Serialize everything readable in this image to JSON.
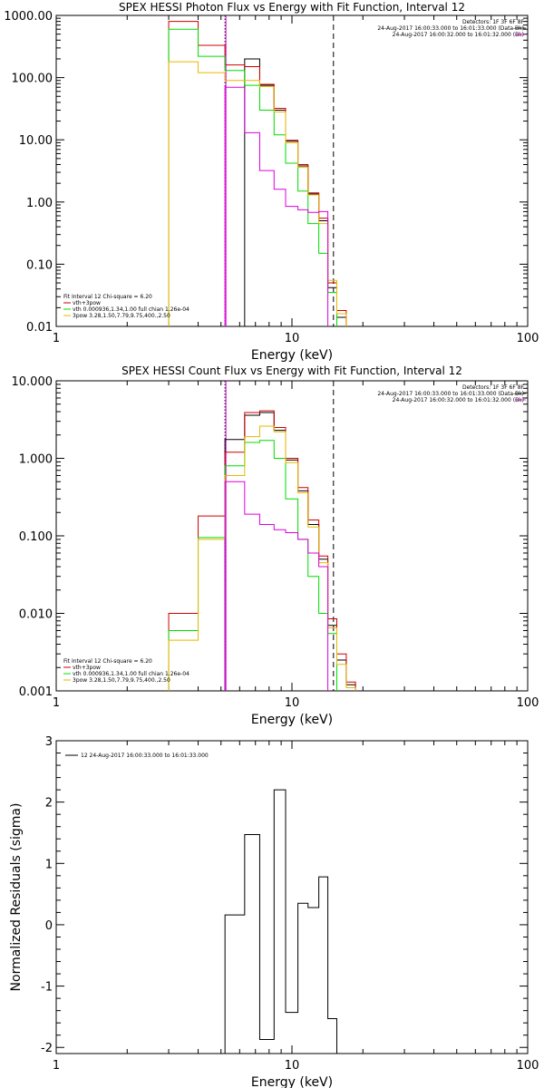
{
  "colors": {
    "black": "#000000",
    "red": "#cc0000",
    "green": "#00dd00",
    "yellow": "#e8b800",
    "magenta": "#dd00dd"
  },
  "chart_data": [
    {
      "type": "line",
      "step": true,
      "title": "SPEX HESSI Photon Flux vs Energy with Fit Function, Interval 12",
      "xlabel": "Energy (keV)",
      "ylabel": "",
      "xscale": "log",
      "yscale": "log",
      "xlim": [
        1,
        100
      ],
      "ylim": [
        0.01,
        1000
      ],
      "xticklabels": [
        "1",
        "10",
        "100"
      ],
      "yticks": [
        0.01,
        0.1,
        1,
        10,
        100,
        1000
      ],
      "yticklabels": [
        "0.01",
        "0.10",
        "1.00",
        "10.00",
        "100.00",
        "1000.00"
      ],
      "vlines": [
        {
          "x": 5.2,
          "style": "dotted",
          "color": "#000000"
        },
        {
          "x": 5.2,
          "style": "solid",
          "color": "#dd00dd"
        },
        {
          "x": 15.0,
          "style": "dashed",
          "color": "#000000"
        }
      ],
      "edges": [
        3.0,
        4.0,
        5.2,
        6.3,
        7.3,
        8.4,
        9.4,
        10.6,
        11.7,
        13.0,
        14.2,
        15.5,
        17.0
      ],
      "legend_top": {
        "position": "top-right",
        "lines": [
          {
            "text": "Detectors: 1F 3F 6F 8F",
            "color": "#000000",
            "line": false
          },
          {
            "text": "24-Aug-2017 16:00:33.000 to 16:01:33.000 (Data-Bk)",
            "color": "#000000",
            "line": true
          },
          {
            "text": "24-Aug-2017 16:00:32.000 to 16:01:32.000 (Bk)",
            "color": "#dd00dd",
            "line": true
          }
        ]
      },
      "legend_bottom": {
        "position": "bottom-left",
        "lines": [
          {
            "text": "Fit Interval 12    Chi-square = 6.20",
            "color": "#000000",
            "line": false
          },
          {
            "text": "vth+3pow",
            "color": "#cc0000",
            "line": true
          },
          {
            "text": "vth 0.000936,1.34,1.00   full chian 1.26e-04",
            "color": "#00dd00",
            "line": true
          },
          {
            "text": "3pow 3.28,1.50,7.79,9.75,400.,2.50",
            "color": "#e8b800",
            "line": true
          }
        ]
      },
      "series": [
        {
          "color": "#000000",
          "values": [
            null,
            null,
            null,
            200,
            75,
            30,
            9.5,
            3.8,
            1.35,
            0.5,
            0.042,
            0.014
          ]
        },
        {
          "color": "#cc0000",
          "values": [
            800,
            330,
            160,
            150,
            78,
            32,
            9.8,
            4.0,
            1.4,
            0.55,
            0.05,
            0.018
          ]
        },
        {
          "color": "#00dd00",
          "values": [
            600,
            220,
            130,
            75,
            30,
            12,
            4.2,
            1.5,
            0.45,
            0.15,
            0.035,
            null
          ]
        },
        {
          "color": "#e8b800",
          "values": [
            180,
            120,
            90,
            90,
            72,
            28,
            9,
            3.6,
            1.3,
            0.45,
            0.055,
            0.016
          ]
        },
        {
          "color": "#dd00dd",
          "values": [
            null,
            null,
            70,
            13,
            3.2,
            1.6,
            0.85,
            0.75,
            0.68,
            0.7,
            null,
            null
          ]
        }
      ]
    },
    {
      "type": "line",
      "step": true,
      "title": "SPEX HESSI Count Flux vs Energy with Fit Function, Interval 12",
      "xlabel": "Energy (keV)",
      "ylabel": "",
      "xscale": "log",
      "yscale": "log",
      "xlim": [
        1,
        100
      ],
      "ylim": [
        0.001,
        10
      ],
      "xticklabels": [
        "1",
        "10",
        "100"
      ],
      "yticks": [
        0.001,
        0.01,
        0.1,
        1,
        10
      ],
      "yticklabels": [
        "0.001",
        "0.010",
        "0.100",
        "1.000",
        "10.000"
      ],
      "vlines": [
        {
          "x": 5.2,
          "style": "dotted",
          "color": "#000000"
        },
        {
          "x": 5.2,
          "style": "solid",
          "color": "#dd00dd"
        },
        {
          "x": 15.0,
          "style": "dashed",
          "color": "#000000"
        }
      ],
      "edges": [
        3.0,
        4.0,
        5.2,
        6.3,
        7.3,
        8.4,
        9.4,
        10.6,
        11.7,
        13.0,
        14.2,
        15.5,
        17.0,
        18.6
      ],
      "legend_top": {
        "position": "top-right",
        "lines": [
          {
            "text": "Detectors: 1F 3F 6F 8F",
            "color": "#000000",
            "line": false
          },
          {
            "text": "24-Aug-2017 16:00:33.000 to 16:01:33.000 (Data-Bk)",
            "color": "#000000",
            "line": true
          },
          {
            "text": "24-Aug-2017 16:00:32.000 to 16:01:32.000 (Bk)",
            "color": "#dd00dd",
            "line": true
          }
        ]
      },
      "legend_bottom": {
        "position": "bottom-left",
        "lines": [
          {
            "text": "Fit Interval 12    Chi-square = 6.20",
            "color": "#000000",
            "line": false
          },
          {
            "text": "vth+3pow",
            "color": "#cc0000",
            "line": true
          },
          {
            "text": "vth 0.000936,1.34,1.00   full chian 1.26e-04",
            "color": "#00dd00",
            "line": true
          },
          {
            "text": "3pow 3.28,1.50,7.79,9.75,400.,2.50",
            "color": "#e8b800",
            "line": true
          }
        ]
      },
      "series": [
        {
          "color": "#000000",
          "values": [
            null,
            null,
            1.75,
            3.6,
            3.9,
            2.3,
            0.95,
            0.38,
            0.14,
            0.05,
            0.007,
            0.0025,
            0.0012
          ]
        },
        {
          "color": "#cc0000",
          "values": [
            0.01,
            0.18,
            1.2,
            3.9,
            4.1,
            2.5,
            1.0,
            0.42,
            0.16,
            0.055,
            0.0085,
            0.003,
            0.0013
          ]
        },
        {
          "color": "#00dd00",
          "values": [
            0.006,
            0.095,
            0.8,
            1.6,
            1.7,
            1.0,
            0.3,
            0.09,
            0.03,
            0.01,
            0.0055,
            null,
            null
          ]
        },
        {
          "color": "#e8b800",
          "values": [
            0.0045,
            0.09,
            0.6,
            1.9,
            2.6,
            2.2,
            0.88,
            0.36,
            0.13,
            0.045,
            0.0065,
            0.0022,
            0.0011
          ]
        },
        {
          "color": "#dd00dd",
          "values": [
            null,
            null,
            0.5,
            0.19,
            0.14,
            0.12,
            0.11,
            0.09,
            0.06,
            0.04,
            null,
            null,
            null
          ]
        }
      ]
    },
    {
      "type": "line",
      "step": true,
      "title": "",
      "xlabel": "Energy (keV)",
      "ylabel": "Normalized Residuals (sigma)",
      "xscale": "log",
      "yscale": "linear",
      "xlim": [
        1,
        100
      ],
      "ylim": [
        -2.1,
        3
      ],
      "xticklabels": [
        "1",
        "10",
        "100"
      ],
      "yticks": [
        -2,
        -1,
        0,
        1,
        2,
        3
      ],
      "yticklabels": [
        "-2",
        "-1",
        "0",
        "1",
        "2",
        "3"
      ],
      "legend_top": {
        "position": "top-left",
        "lines": [
          {
            "text": "12  24-Aug-2017 16:00:33.000 to 16:01:33.000",
            "color": "#000000",
            "line": true
          }
        ]
      },
      "edges": [
        5.2,
        6.3,
        7.3,
        8.4,
        9.4,
        10.6,
        11.7,
        13.0,
        14.2,
        15.5
      ],
      "series": [
        {
          "color": "#000000",
          "values": [
            0.16,
            1.47,
            -1.87,
            2.2,
            -1.43,
            0.35,
            0.28,
            0.78,
            -1.53
          ]
        }
      ]
    }
  ]
}
